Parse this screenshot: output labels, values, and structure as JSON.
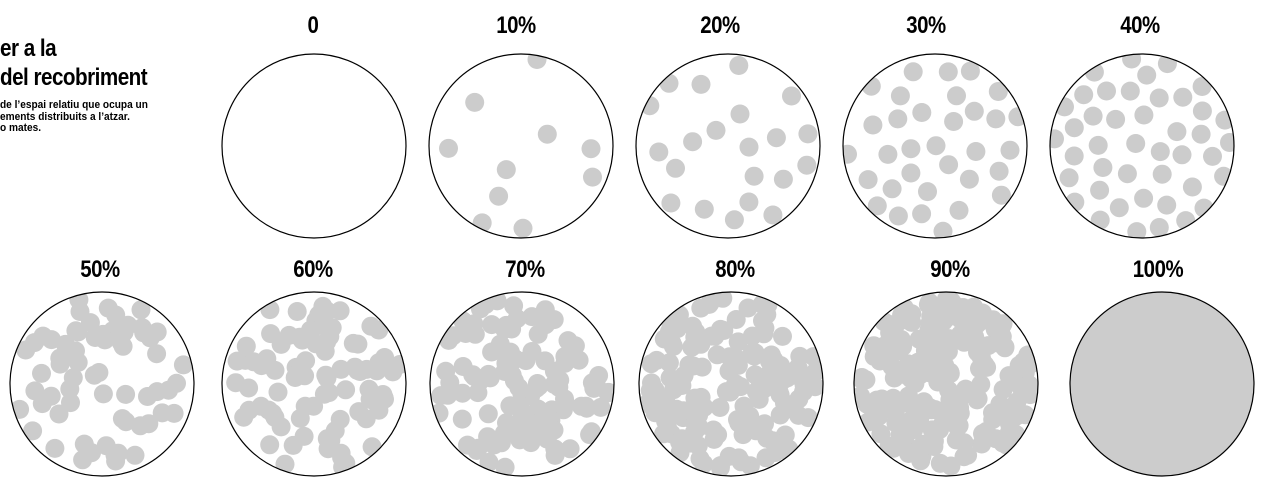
{
  "sidebar": {
    "title_line_1": "er a la",
    "title_line_2": " del recobriment",
    "desc_line_1": "de l’espai relatiu que ocupa un",
    "desc_line_2": "ements distribuits a l’atzar.",
    "desc_line_3": "o mates."
  },
  "panels": [
    {
      "label": "0",
      "coverage": 0.0
    },
    {
      "label": "10%",
      "coverage": 0.1
    },
    {
      "label": "20%",
      "coverage": 0.2
    },
    {
      "label": "30%",
      "coverage": 0.3
    },
    {
      "label": "40%",
      "coverage": 0.4
    },
    {
      "label": "50%",
      "coverage": 0.5
    },
    {
      "label": "60%",
      "coverage": 0.6
    },
    {
      "label": "70%",
      "coverage": 0.7
    },
    {
      "label": "80%",
      "coverage": 0.8
    },
    {
      "label": "90%",
      "coverage": 0.9
    },
    {
      "label": "100%",
      "coverage": 1.0
    }
  ],
  "colors": {
    "dot": "#cccccc",
    "outline": "#000000",
    "background": "#ffffff"
  }
}
